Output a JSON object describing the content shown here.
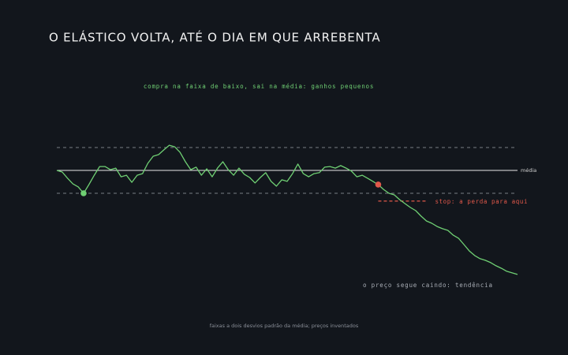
{
  "chart_data": {
    "type": "line",
    "title": "O ELÁSTICO VOLTA, ATÉ O DIA EM QUE ARREBENTA",
    "subtitle": "compra na faixa de baixo, sai na média: ganhos pequenos",
    "mean_label": "média",
    "stop_label": "stop: a perda para aqui",
    "trend_label": "o preço segue caindo: tendência",
    "footnote": "faixas a dois desvios padrão da média; preços inventados",
    "xlim": [
      0,
      86
    ],
    "ylim": [
      50,
      115
    ],
    "mean": 100,
    "band_upper": 110,
    "band_lower": 90,
    "stop_level": 86.6,
    "entry_index": 5,
    "stop_index": 60,
    "entry_color": "#6fcf73",
    "stop_color": "#e0584a",
    "series": [
      {
        "color": "#6fcf73",
        "values": [
          100,
          99.3,
          96.6,
          94.1,
          92.8,
          90,
          93.8,
          97.9,
          101.7,
          101.7,
          100.3,
          101.0,
          97.2,
          97.9,
          94.8,
          97.9,
          98.6,
          103.1,
          106.2,
          106.9,
          109.0,
          111.0,
          110.3,
          107.9,
          103.8,
          100.3,
          101.4,
          97.9,
          100.7,
          97.2,
          101.0,
          103.8,
          100.3,
          97.9,
          101.0,
          98.3,
          96.9,
          94.5,
          96.9,
          99.0,
          95.2,
          93.1,
          95.9,
          95.2,
          98.6,
          102.8,
          98.6,
          97.2,
          98.6,
          99.0,
          101.4,
          101.7,
          101.0,
          102.1,
          101.0,
          99.7,
          97.2,
          97.9,
          96.6,
          95.2,
          93.8,
          91.7,
          90.0,
          89.3,
          87.2,
          85.5,
          83.8,
          82.4,
          80.0,
          77.9,
          76.9,
          75.5,
          74.5,
          73.8,
          71.7,
          70.3,
          67.6,
          64.8,
          62.8,
          61.4,
          60.7,
          59.7,
          58.3,
          57.2,
          55.9,
          55.2,
          54.5
        ]
      }
    ]
  }
}
